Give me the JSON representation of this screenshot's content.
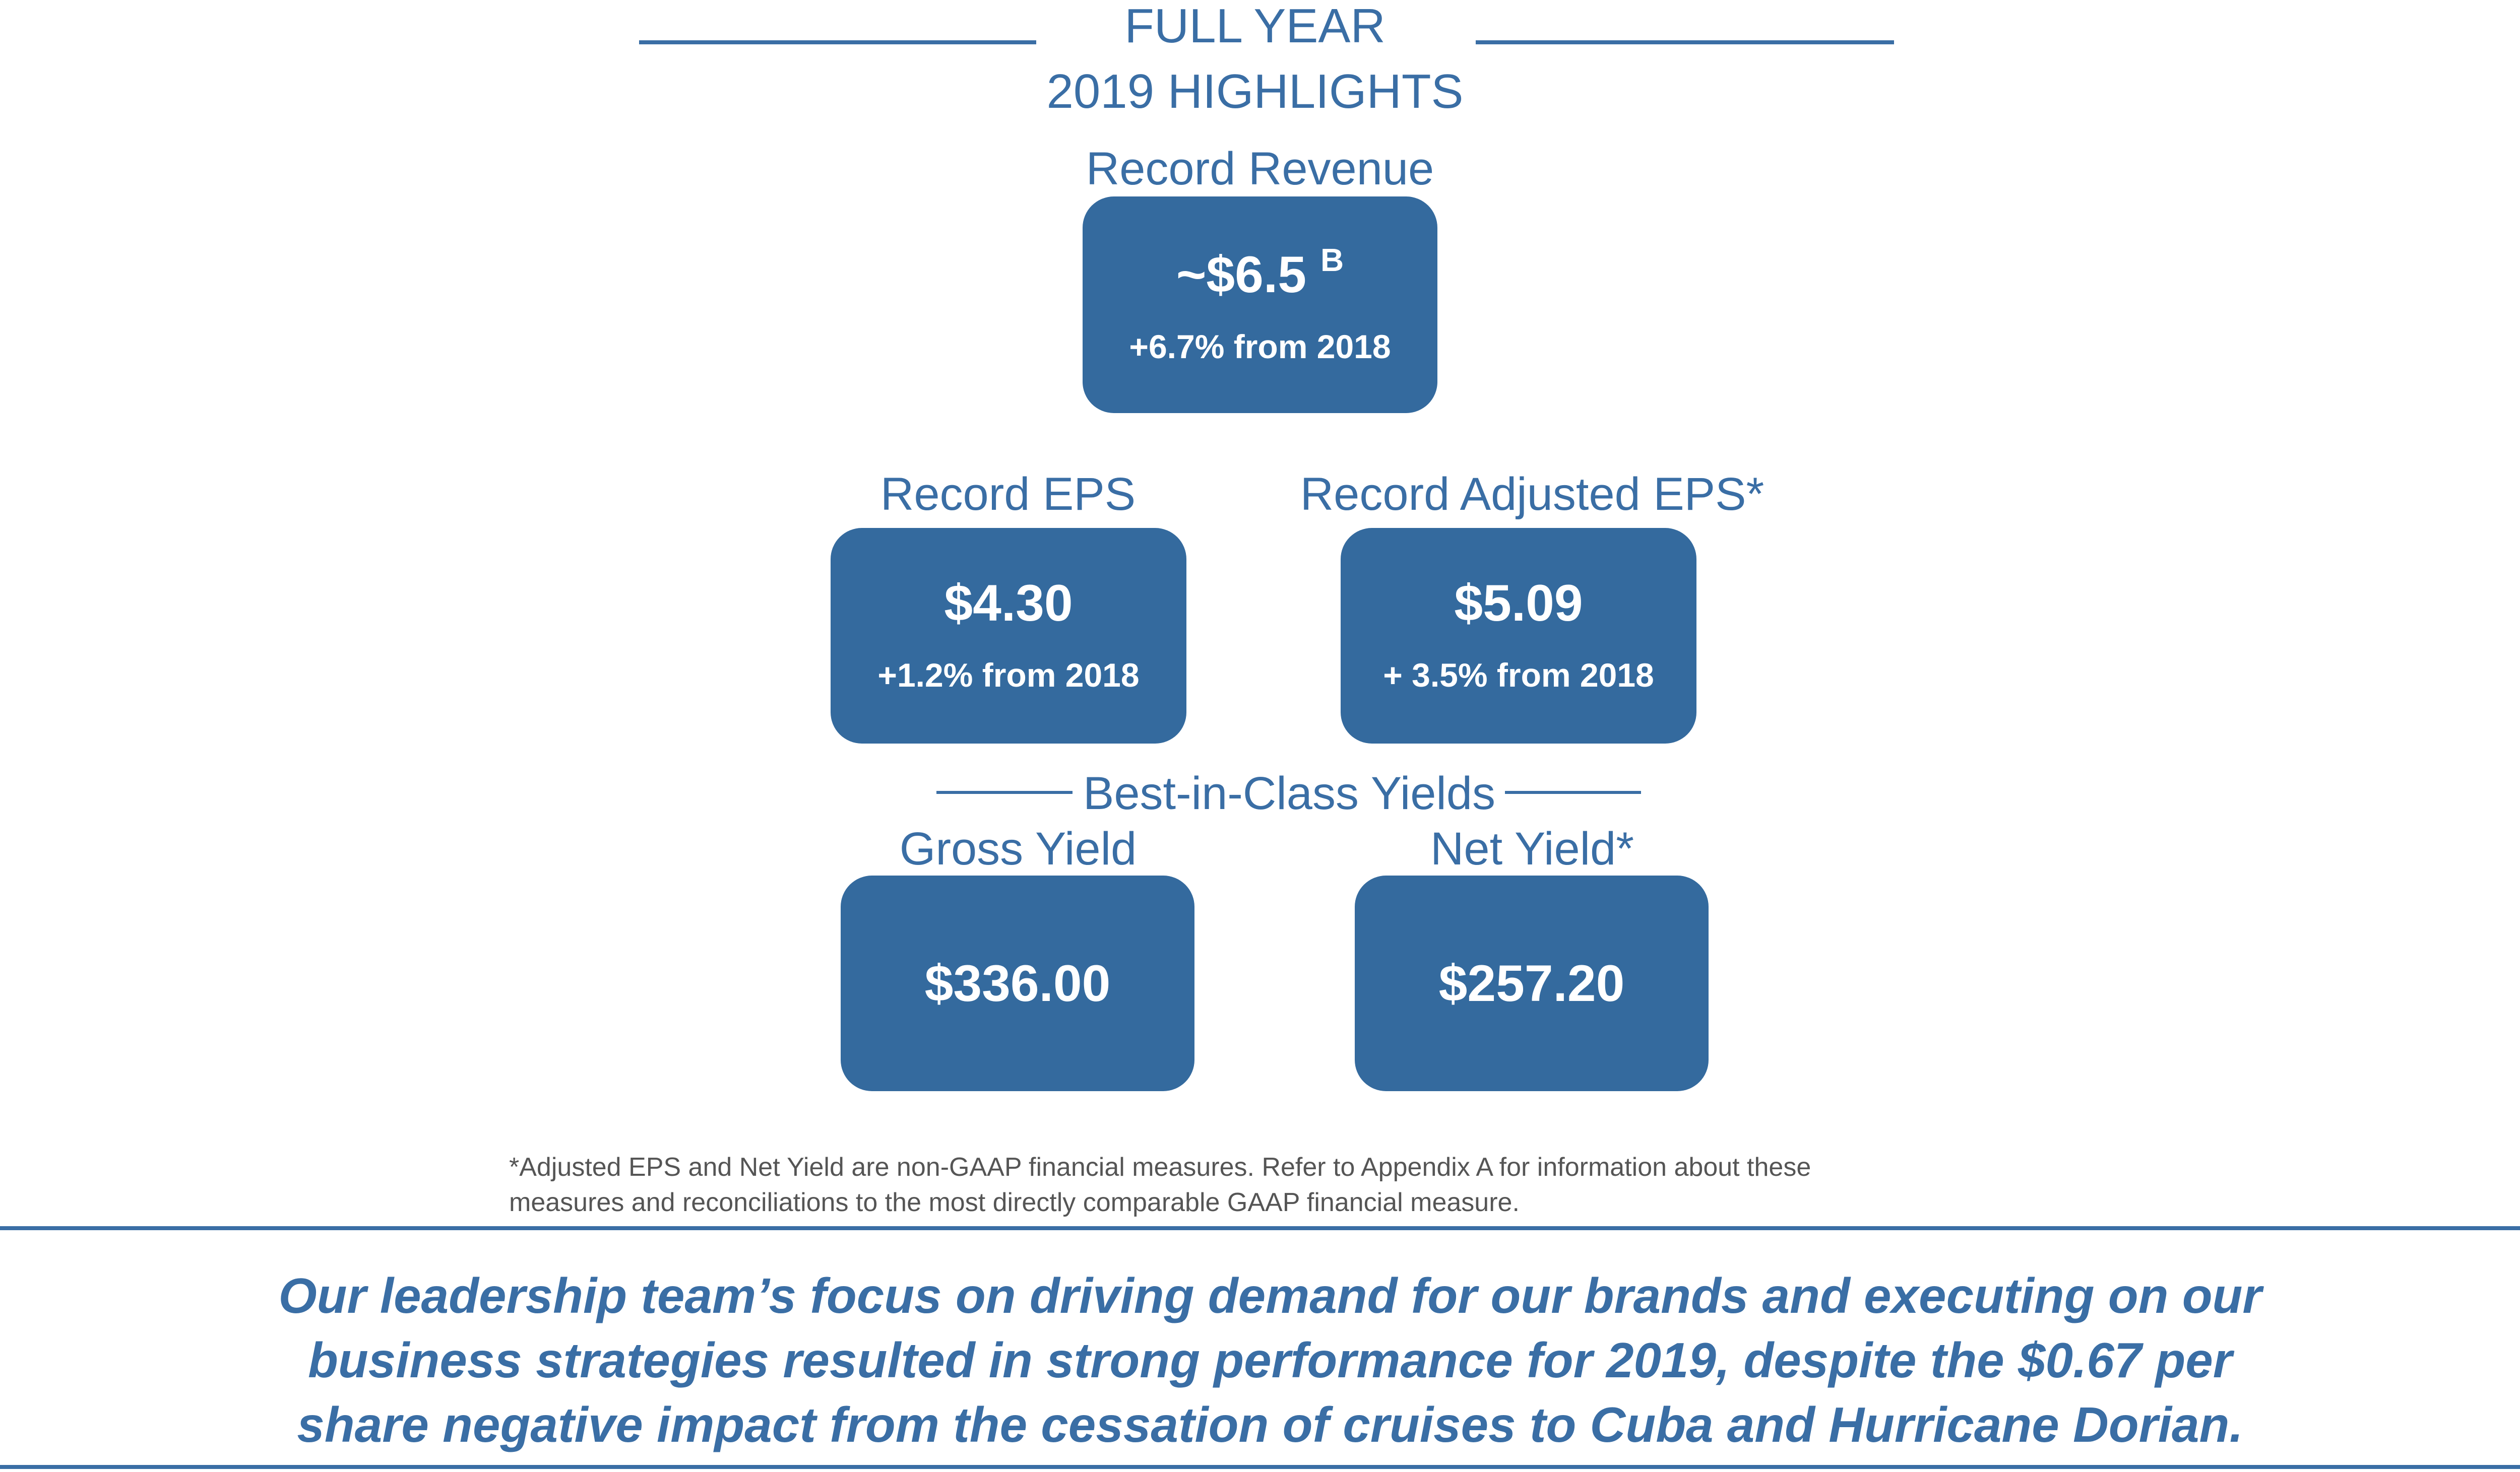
{
  "header": {
    "line1": "FULL YEAR",
    "line2": "2019 HIGHLIGHTS"
  },
  "revenue": {
    "label": "Record Revenue",
    "value": "~$6.5",
    "unit": "B",
    "change": "+6.7% from 2018"
  },
  "eps": {
    "label": "Record EPS",
    "value": "$4.30",
    "change": "+1.2% from 2018"
  },
  "adjusted_eps": {
    "label": "Record Adjusted EPS*",
    "value": "$5.09",
    "change": "+ 3.5% from 2018"
  },
  "yields": {
    "section_label": "Best-in-Class Yields",
    "gross": {
      "label": "Gross Yield",
      "value": "$336.00"
    },
    "net": {
      "label": "Net Yield*",
      "value": "$257.20"
    }
  },
  "footnote": {
    "line1": "*Adjusted EPS and Net Yield are non-GAAP financial measures. Refer to Appendix A for information about these",
    "line2": "measures and reconciliations to the most directly comparable GAAP financial measure."
  },
  "quote": {
    "line1": "Our leadership team’s focus on driving demand for our brands and executing on our",
    "line2": "business strategies resulted in strong performance for 2019, despite the $0.67 per",
    "line3": "share negative impact from the cessation of cruises to Cuba and Hurricane Dorian."
  },
  "colors": {
    "accent": "#3a6ea5",
    "box_fill": "#346a9e",
    "footnote_text": "#555555"
  }
}
